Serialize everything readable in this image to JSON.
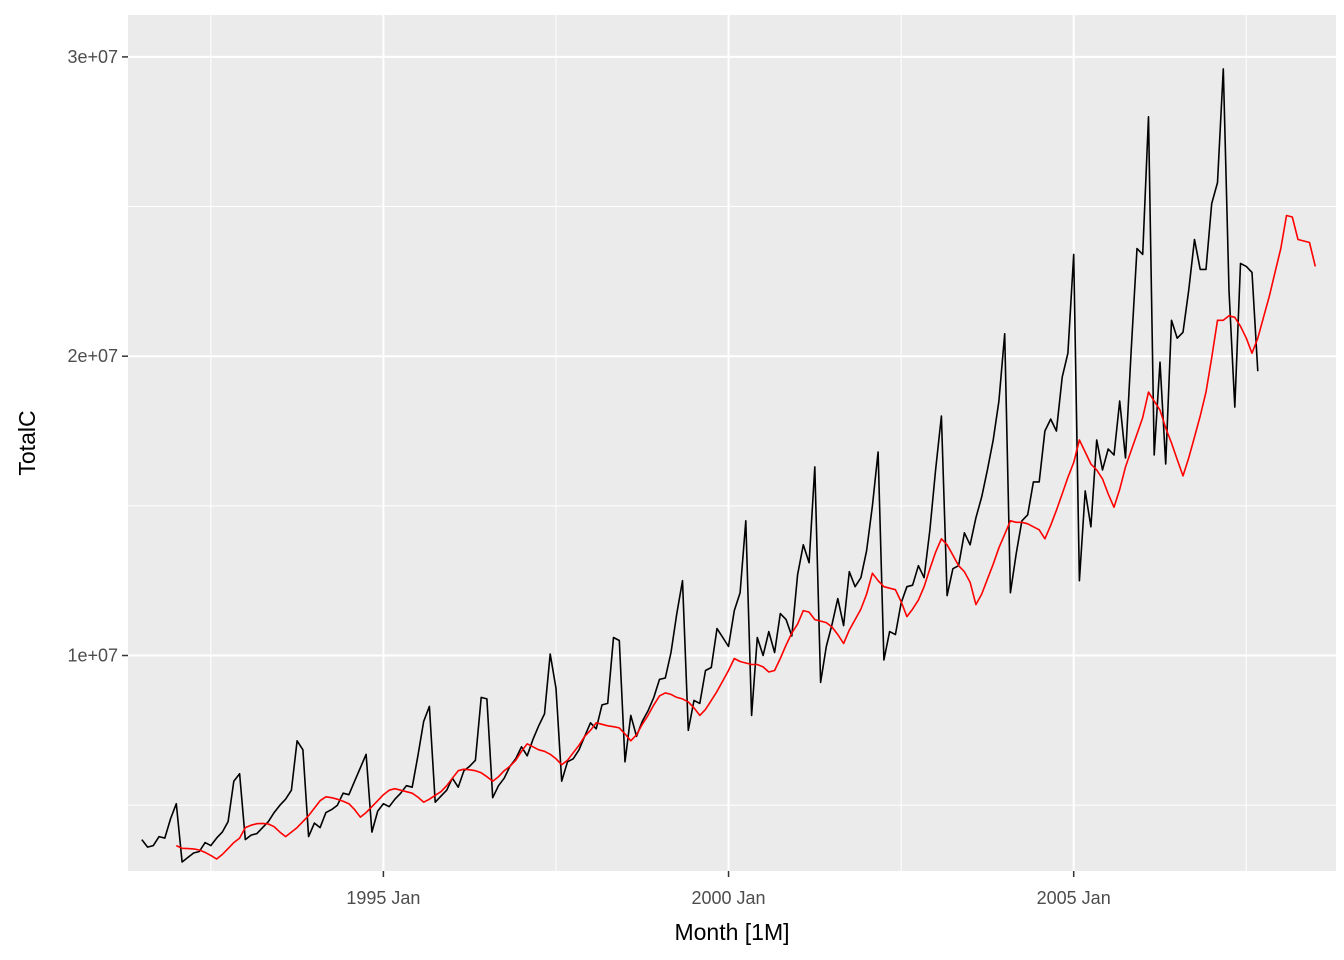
{
  "chart_data": {
    "type": "line",
    "title": "",
    "xlabel": "Month [1M]",
    "ylabel": "TotalC",
    "x_start": "1991-07",
    "x_ticks": [
      {
        "value": 1995.0,
        "label": "1995 Jan"
      },
      {
        "value": 2000.0,
        "label": "2000 Jan"
      },
      {
        "value": 2005.0,
        "label": "2005 Jan"
      }
    ],
    "y_ticks": [
      {
        "value": 10000000,
        "label": "1e+07"
      },
      {
        "value": 20000000,
        "label": "2e+07"
      },
      {
        "value": 30000000,
        "label": "3e+07"
      }
    ],
    "xlim": [
      1991.3,
      2008.8
    ],
    "ylim": [
      2800000,
      31400000
    ],
    "grid": true,
    "legend": "none",
    "colors": {
      "panel": "#ebebeb",
      "grid": "#ffffff",
      "series_observed": "#000000",
      "series_trend": "#ff0000"
    },
    "series": [
      {
        "role": "observed",
        "color": "#000000",
        "values": [
          3850000,
          3600000,
          3650000,
          3950000,
          3900000,
          4550000,
          5050000,
          3100000,
          3250000,
          3400000,
          3450000,
          3750000,
          3650000,
          3900000,
          4100000,
          4450000,
          5800000,
          6050000,
          3850000,
          4000000,
          4050000,
          4250000,
          4450000,
          4750000,
          5000000,
          5200000,
          5500000,
          7150000,
          6850000,
          3950000,
          4400000,
          4250000,
          4750000,
          4850000,
          5000000,
          5400000,
          5350000,
          5800000,
          6250000,
          6700000,
          4100000,
          4800000,
          5050000,
          4950000,
          5200000,
          5400000,
          5650000,
          5600000,
          6650000,
          7800000,
          8300000,
          5100000,
          5300000,
          5500000,
          5900000,
          5600000,
          6150000,
          6300000,
          6500000,
          8600000,
          8550000,
          5250000,
          5650000,
          5900000,
          6300000,
          6550000,
          6950000,
          6650000,
          7200000,
          7650000,
          8050000,
          10050000,
          8900000,
          5800000,
          6450000,
          6550000,
          6850000,
          7300000,
          7750000,
          7550000,
          8350000,
          8400000,
          10600000,
          10500000,
          6450000,
          8000000,
          7300000,
          7800000,
          8150000,
          8600000,
          9200000,
          9250000,
          10100000,
          11400000,
          12500000,
          7500000,
          8500000,
          8400000,
          9500000,
          9600000,
          10900000,
          10600000,
          10300000,
          11500000,
          12100000,
          14500000,
          8000000,
          10600000,
          10000000,
          10800000,
          10100000,
          11400000,
          11200000,
          10650000,
          12700000,
          13700000,
          13100000,
          16300000,
          9100000,
          10300000,
          11050000,
          11900000,
          11000000,
          12800000,
          12300000,
          12600000,
          13500000,
          15000000,
          16800000,
          9850000,
          10800000,
          10700000,
          11750000,
          12300000,
          12350000,
          13000000,
          12600000,
          14200000,
          16200000,
          18000000,
          12000000,
          12900000,
          13000000,
          14100000,
          13700000,
          14600000,
          15300000,
          16200000,
          17200000,
          18500000,
          20750000,
          12100000,
          13400000,
          14500000,
          14700000,
          15800000,
          15800000,
          17500000,
          17900000,
          17500000,
          19300000,
          20100000,
          23400000,
          12500000,
          15500000,
          14300000,
          17200000,
          16200000,
          16900000,
          16700000,
          18500000,
          16600000,
          20200000,
          23600000,
          23400000,
          28000000,
          16700000,
          19800000,
          16400000,
          21200000,
          20600000,
          20800000,
          22200000,
          23900000,
          22900000,
          22900000,
          25100000,
          25800000,
          29600000,
          22200000,
          18300000,
          23100000,
          23000000,
          22800000,
          19500000
        ]
      },
      {
        "role": "trend",
        "color": "#ff0000",
        "start_index": 6,
        "values": [
          3650000,
          3560000,
          3550000,
          3540000,
          3500000,
          3420000,
          3320000,
          3200000,
          3350000,
          3550000,
          3750000,
          3900000,
          4250000,
          4330000,
          4380000,
          4390000,
          4370000,
          4280000,
          4100000,
          3950000,
          4100000,
          4250000,
          4450000,
          4650000,
          4900000,
          5150000,
          5280000,
          5250000,
          5200000,
          5130000,
          5050000,
          4850000,
          4600000,
          4750000,
          4950000,
          5150000,
          5350000,
          5500000,
          5550000,
          5500000,
          5450000,
          5400000,
          5270000,
          5100000,
          5200000,
          5330000,
          5450000,
          5650000,
          5900000,
          6150000,
          6200000,
          6180000,
          6150000,
          6080000,
          5950000,
          5800000,
          5950000,
          6150000,
          6300000,
          6500000,
          6800000,
          7050000,
          6950000,
          6850000,
          6800000,
          6700000,
          6550000,
          6350000,
          6500000,
          6750000,
          7000000,
          7300000,
          7500000,
          7750000,
          7700000,
          7650000,
          7620000,
          7580000,
          7380000,
          7150000,
          7350000,
          7700000,
          8000000,
          8350000,
          8650000,
          8750000,
          8700000,
          8600000,
          8550000,
          8450000,
          8250000,
          8000000,
          8200000,
          8500000,
          8800000,
          9150000,
          9500000,
          9900000,
          9800000,
          9750000,
          9700000,
          9700000,
          9620000,
          9450000,
          9500000,
          9900000,
          10350000,
          10750000,
          11050000,
          11500000,
          11450000,
          11200000,
          11150000,
          11100000,
          10950000,
          10700000,
          10400000,
          10850000,
          11200000,
          11550000,
          12050000,
          12750000,
          12500000,
          12300000,
          12250000,
          12200000,
          11800000,
          11300000,
          11550000,
          11850000,
          12300000,
          12900000,
          13450000,
          13900000,
          13700000,
          13350000,
          13000000,
          12800000,
          12450000,
          11700000,
          12050000,
          12550000,
          13050000,
          13600000,
          14050000,
          14500000,
          14450000,
          14450000,
          14400000,
          14300000,
          14200000,
          13900000,
          14350000,
          14850000,
          15400000,
          15950000,
          16450000,
          17200000,
          16800000,
          16400000,
          16200000,
          15900000,
          15400000,
          14950000,
          15550000,
          16300000,
          16850000,
          17400000,
          17950000,
          18800000,
          18500000,
          18200000,
          17600000,
          17100000,
          16550000,
          16000000,
          16600000,
          17300000,
          18000000,
          18800000,
          19950000,
          21200000,
          21200000,
          21350000,
          21300000,
          21000000,
          20600000,
          20100000,
          20600000,
          21300000,
          22000000,
          22800000,
          23600000,
          24700000,
          24650000,
          23900000,
          23850000,
          23800000,
          23000000
        ]
      }
    ]
  }
}
